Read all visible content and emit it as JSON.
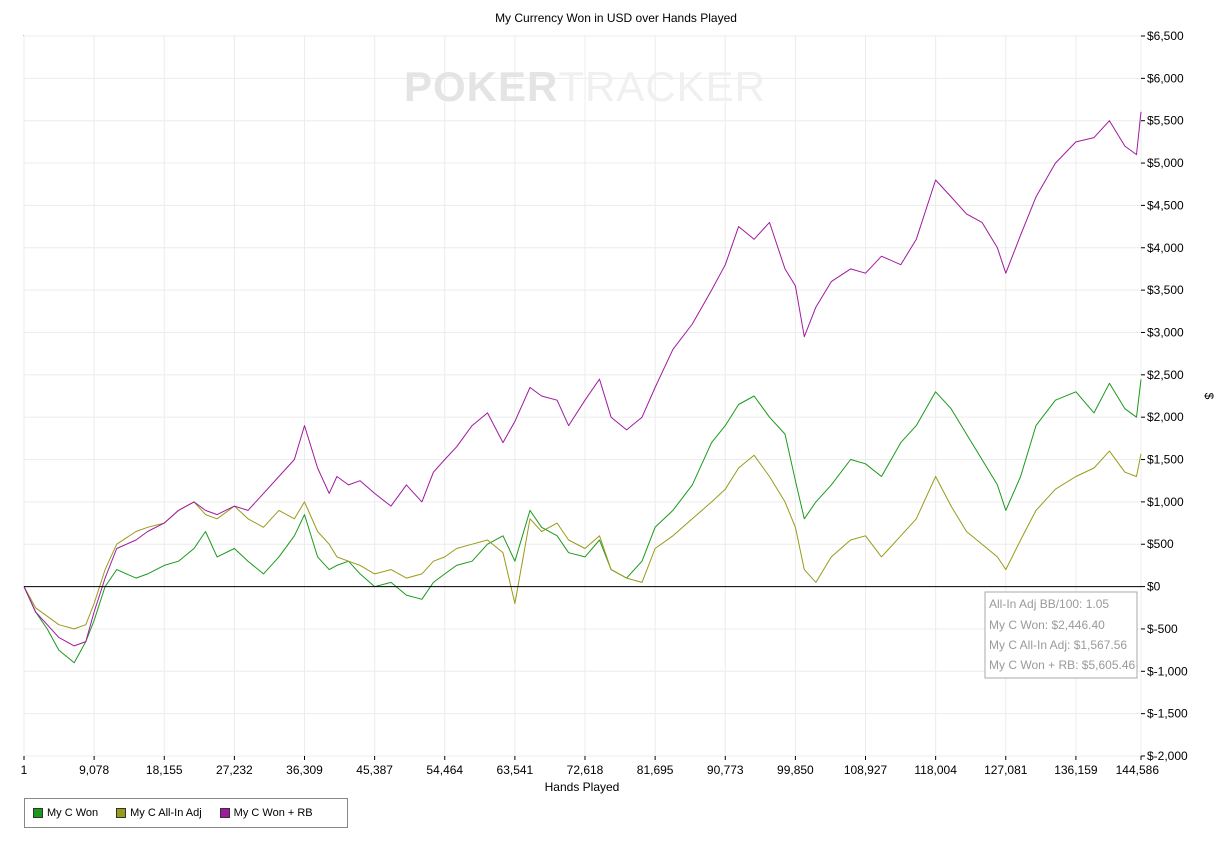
{
  "chart_data": {
    "type": "line",
    "title": "My Currency Won in USD over Hands Played",
    "xlabel": "Hands Played",
    "ylabel": "$",
    "xlim": [
      1,
      144586
    ],
    "ylim": [
      -2000,
      6500
    ],
    "grid": true,
    "x_ticks": [
      "1",
      "9,078",
      "18,155",
      "27,232",
      "36,309",
      "45,387",
      "54,464",
      "63,541",
      "72,618",
      "81,695",
      "90,773",
      "99,850",
      "108,927",
      "118,004",
      "127,081",
      "136,159",
      "144,586"
    ],
    "y_ticks": [
      "$6,500",
      "$6,000",
      "$5,500",
      "$5,000",
      "$4,500",
      "$4,000",
      "$3,500",
      "$3,000",
      "$2,500",
      "$2,000",
      "$1,500",
      "$1,000",
      "$500",
      "$0",
      "$-500",
      "$-1,000",
      "$-1,500",
      "$-2,000"
    ],
    "watermark": {
      "bold": "POKER",
      "light": "TRACKER"
    },
    "info_box": [
      "All-In Adj BB/100: 1.05",
      "My C Won: $2,446.40",
      "My C All-In Adj: $1,567.56",
      "My C Won + RB: $5,605.46"
    ],
    "legend_position": "bottom-left",
    "series": [
      {
        "name": "My C Won",
        "color": "#1a9a1a",
        "x": [
          1,
          1500,
          3000,
          4500,
          6500,
          8000,
          9078,
          10500,
          12000,
          14500,
          16000,
          18155,
          20000,
          22000,
          23500,
          25000,
          27232,
          29000,
          31000,
          33000,
          35000,
          36309,
          38000,
          39500,
          40500,
          42000,
          43500,
          45387,
          47500,
          49500,
          51500,
          53000,
          54464,
          56000,
          58000,
          60000,
          62000,
          63541,
          65500,
          67000,
          69000,
          70500,
          72618,
          74500,
          76000,
          78000,
          80000,
          81695,
          84000,
          86500,
          89000,
          90773,
          92500,
          94500,
          96500,
          98500,
          99850,
          101000,
          102500,
          104500,
          107000,
          108927,
          111000,
          113500,
          115500,
          118004,
          120000,
          122000,
          124000,
          126000,
          127081,
          129000,
          131000,
          133500,
          136159,
          138500,
          140500,
          142500,
          144000,
          144586
        ],
        "y": [
          0,
          -300,
          -500,
          -750,
          -900,
          -650,
          -400,
          0,
          200,
          100,
          150,
          250,
          300,
          450,
          650,
          350,
          450,
          300,
          150,
          350,
          600,
          850,
          350,
          200,
          250,
          300,
          150,
          0,
          50,
          -100,
          -150,
          50,
          150,
          250,
          300,
          500,
          600,
          300,
          900,
          700,
          600,
          400,
          350,
          550,
          200,
          100,
          300,
          700,
          900,
          1200,
          1700,
          1900,
          2150,
          2250,
          2000,
          1800,
          1250,
          800,
          1000,
          1200,
          1500,
          1450,
          1300,
          1700,
          1900,
          2300,
          2100,
          1800,
          1500,
          1200,
          900,
          1300,
          1900,
          2200,
          2300,
          2050,
          2400,
          2100,
          2000,
          2446.4
        ]
      },
      {
        "name": "My C All-In Adj",
        "color": "#9a9a1a",
        "x": [
          1,
          1500,
          3000,
          4500,
          6500,
          8000,
          9078,
          10500,
          12000,
          14500,
          16000,
          18155,
          20000,
          22000,
          23500,
          25000,
          27232,
          29000,
          31000,
          33000,
          35000,
          36309,
          38000,
          39500,
          40500,
          42000,
          43500,
          45387,
          47500,
          49500,
          51500,
          53000,
          54464,
          56000,
          58000,
          60000,
          62000,
          63541,
          65500,
          67000,
          69000,
          70500,
          72618,
          74500,
          76000,
          78000,
          80000,
          81695,
          84000,
          86500,
          89000,
          90773,
          92500,
          94500,
          96500,
          98500,
          99850,
          101000,
          102500,
          104500,
          107000,
          108927,
          111000,
          113500,
          115500,
          118004,
          120000,
          122000,
          124000,
          126000,
          127081,
          129000,
          131000,
          133500,
          136159,
          138500,
          140500,
          142500,
          144000,
          144586
        ],
        "y": [
          0,
          -250,
          -350,
          -450,
          -500,
          -450,
          -200,
          200,
          500,
          650,
          700,
          750,
          900,
          1000,
          850,
          800,
          950,
          800,
          700,
          900,
          800,
          1000,
          650,
          500,
          350,
          300,
          250,
          150,
          200,
          100,
          150,
          300,
          350,
          450,
          500,
          550,
          400,
          -200,
          800,
          650,
          750,
          550,
          450,
          600,
          200,
          100,
          50,
          450,
          600,
          800,
          1000,
          1150,
          1400,
          1550,
          1300,
          1000,
          700,
          200,
          50,
          350,
          550,
          600,
          350,
          600,
          800,
          1300,
          950,
          650,
          500,
          350,
          200,
          550,
          900,
          1150,
          1300,
          1400,
          1600,
          1350,
          1300,
          1567.56
        ]
      },
      {
        "name": "My C Won + RB",
        "color": "#a01aa0",
        "x": [
          1,
          1500,
          3000,
          4500,
          6500,
          8000,
          9078,
          10500,
          12000,
          14500,
          16000,
          18155,
          20000,
          22000,
          23500,
          25000,
          27232,
          29000,
          31000,
          33000,
          35000,
          36309,
          38000,
          39500,
          40500,
          42000,
          43500,
          45387,
          47500,
          49500,
          51500,
          53000,
          54464,
          56000,
          58000,
          60000,
          62000,
          63541,
          65500,
          67000,
          69000,
          70500,
          72618,
          74500,
          76000,
          78000,
          80000,
          81695,
          84000,
          86500,
          89000,
          90773,
          92500,
          94500,
          96500,
          98500,
          99850,
          101000,
          102500,
          104500,
          107000,
          108927,
          111000,
          113500,
          115500,
          118004,
          120000,
          122000,
          124000,
          126000,
          127081,
          129000,
          131000,
          133500,
          136159,
          138500,
          140500,
          142500,
          144000,
          144586
        ],
        "y": [
          0,
          -300,
          -450,
          -600,
          -700,
          -650,
          -300,
          100,
          450,
          550,
          650,
          750,
          900,
          1000,
          900,
          850,
          950,
          900,
          1100,
          1300,
          1500,
          1900,
          1400,
          1100,
          1300,
          1200,
          1250,
          1100,
          950,
          1200,
          1000,
          1350,
          1500,
          1650,
          1900,
          2050,
          1700,
          1950,
          2350,
          2250,
          2200,
          1900,
          2200,
          2450,
          2000,
          1850,
          2000,
          2350,
          2800,
          3100,
          3500,
          3800,
          4250,
          4100,
          4300,
          3750,
          3550,
          2950,
          3300,
          3600,
          3750,
          3700,
          3900,
          3800,
          4100,
          4800,
          4600,
          4400,
          4300,
          4000,
          3700,
          4150,
          4600,
          5000,
          5250,
          5300,
          5500,
          5200,
          5100,
          5605.46
        ]
      }
    ]
  }
}
